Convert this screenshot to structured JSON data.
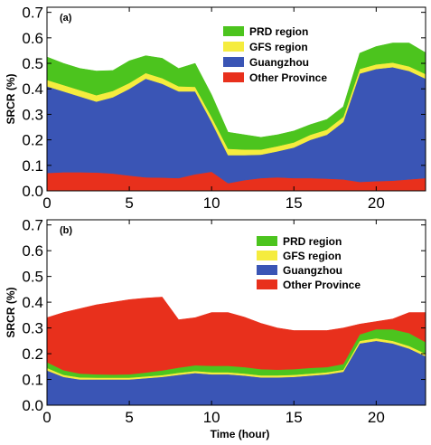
{
  "chart_data": [
    {
      "type": "area",
      "panel_label": "(a)",
      "title": "",
      "xlabel": "",
      "ylabel": "SRCR (%)",
      "xlim": [
        0,
        23
      ],
      "ylim": [
        0,
        0.72
      ],
      "xticks": [
        0,
        5,
        10,
        15,
        20
      ],
      "yticks": [
        0.0,
        0.1,
        0.2,
        0.3,
        0.4,
        0.5,
        0.6,
        0.7
      ],
      "ytick_labels": [
        "0.0",
        "0.1",
        "0.2",
        "0.3",
        "0.4",
        "0.5",
        "0.6",
        "0.7"
      ],
      "stacked": true,
      "legend_position": "top-right",
      "x": [
        0,
        1,
        2,
        3,
        4,
        5,
        6,
        7,
        8,
        9,
        10,
        11,
        12,
        13,
        14,
        15,
        16,
        17,
        18,
        19,
        20,
        21,
        22,
        23
      ],
      "series": [
        {
          "name": "Other Province",
          "color": "#e8301c",
          "values": [
            0.07,
            0.073,
            0.073,
            0.072,
            0.068,
            0.06,
            0.053,
            0.052,
            0.05,
            0.065,
            0.075,
            0.03,
            0.042,
            0.05,
            0.053,
            0.05,
            0.05,
            0.048,
            0.045,
            0.035,
            0.038,
            0.04,
            0.045,
            0.05
          ]
        },
        {
          "name": "Guangzhou",
          "color": "#3a55b5",
          "values": [
            0.34,
            0.317,
            0.297,
            0.278,
            0.299,
            0.34,
            0.387,
            0.368,
            0.34,
            0.325,
            0.195,
            0.11,
            0.098,
            0.092,
            0.102,
            0.12,
            0.15,
            0.172,
            0.225,
            0.425,
            0.44,
            0.445,
            0.425,
            0.39
          ]
        },
        {
          "name": "GFS region",
          "color": "#f5ec3e",
          "values": [
            0.025,
            0.025,
            0.025,
            0.025,
            0.025,
            0.023,
            0.022,
            0.022,
            0.02,
            0.018,
            0.02,
            0.025,
            0.022,
            0.02,
            0.02,
            0.02,
            0.02,
            0.02,
            0.02,
            0.018,
            0.018,
            0.018,
            0.018,
            0.018
          ]
        },
        {
          "name": "PRD region",
          "color": "#4cc41e",
          "values": [
            0.09,
            0.085,
            0.085,
            0.095,
            0.08,
            0.087,
            0.068,
            0.078,
            0.07,
            0.092,
            0.087,
            0.065,
            0.058,
            0.048,
            0.045,
            0.045,
            0.04,
            0.04,
            0.04,
            0.062,
            0.07,
            0.077,
            0.092,
            0.084
          ]
        }
      ]
    },
    {
      "type": "area",
      "panel_label": "(b)",
      "title": "",
      "xlabel": "Time (hour)",
      "ylabel": "SRCR (%)",
      "xlim": [
        0,
        23
      ],
      "ylim": [
        0,
        0.72
      ],
      "xticks": [
        0,
        5,
        10,
        15,
        20
      ],
      "yticks": [
        0.0,
        0.1,
        0.2,
        0.3,
        0.4,
        0.5,
        0.6,
        0.7
      ],
      "ytick_labels": [
        "0.0",
        "0.1",
        "0.2",
        "0.3",
        "0.4",
        "0.5",
        "0.6",
        "0.7"
      ],
      "stacked": true,
      "legend_position": "top-right",
      "x": [
        0,
        1,
        2,
        3,
        4,
        5,
        6,
        7,
        8,
        9,
        10,
        11,
        12,
        13,
        14,
        15,
        16,
        17,
        18,
        19,
        20,
        21,
        22,
        23
      ],
      "series": [
        {
          "name": "Guangzhou",
          "color": "#3a55b5",
          "values": [
            0.135,
            0.11,
            0.1,
            0.1,
            0.1,
            0.1,
            0.105,
            0.11,
            0.118,
            0.125,
            0.12,
            0.12,
            0.115,
            0.108,
            0.108,
            0.11,
            0.115,
            0.12,
            0.13,
            0.24,
            0.25,
            0.24,
            0.22,
            0.19
          ]
        },
        {
          "name": "GFS region",
          "color": "#f5ec3e",
          "values": [
            0.01,
            0.008,
            0.008,
            0.007,
            0.007,
            0.007,
            0.007,
            0.007,
            0.008,
            0.008,
            0.008,
            0.008,
            0.008,
            0.008,
            0.008,
            0.008,
            0.008,
            0.008,
            0.008,
            0.01,
            0.01,
            0.01,
            0.01,
            0.01
          ]
        },
        {
          "name": "PRD region",
          "color": "#4cc41e",
          "values": [
            0.022,
            0.018,
            0.015,
            0.013,
            0.012,
            0.013,
            0.015,
            0.018,
            0.02,
            0.022,
            0.025,
            0.025,
            0.025,
            0.024,
            0.022,
            0.022,
            0.022,
            0.02,
            0.022,
            0.025,
            0.035,
            0.045,
            0.05,
            0.045
          ]
        },
        {
          "name": "Other Province",
          "color": "#e8301c",
          "values": [
            0.173,
            0.224,
            0.252,
            0.27,
            0.281,
            0.29,
            0.289,
            0.285,
            0.186,
            0.185,
            0.207,
            0.207,
            0.194,
            0.178,
            0.162,
            0.15,
            0.145,
            0.142,
            0.14,
            0.04,
            0.03,
            0.04,
            0.08,
            0.115
          ]
        }
      ],
      "legend_order": [
        "PRD region",
        "GFS region",
        "Guangzhou",
        "Other Province"
      ]
    }
  ]
}
